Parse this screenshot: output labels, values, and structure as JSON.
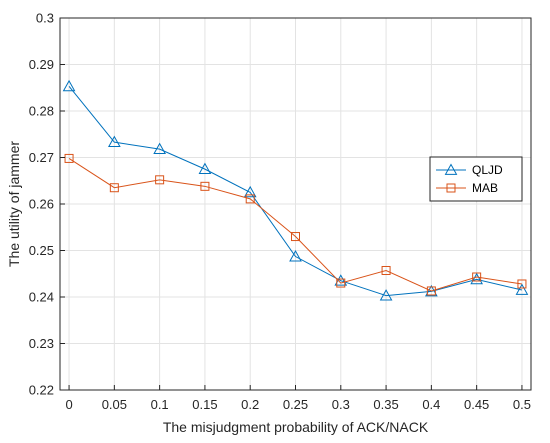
{
  "chart_data": {
    "type": "line",
    "title": "",
    "xlabel": "The misjudgment probability of ACK/NACK",
    "ylabel": "The utility of jammer",
    "x": [
      0,
      0.05,
      0.1,
      0.15,
      0.2,
      0.25,
      0.3,
      0.35,
      0.4,
      0.45,
      0.5
    ],
    "x_tick_labels": [
      "0",
      "0.05",
      "0.1",
      "0.15",
      "0.2",
      "0.25",
      "0.3",
      "0.35",
      "0.4",
      "0.45",
      "0.5"
    ],
    "xlim": [
      -0.01,
      0.51
    ],
    "ylim": [
      0.22,
      0.3
    ],
    "y_ticks": [
      0.22,
      0.23,
      0.24,
      0.25,
      0.26,
      0.27,
      0.28,
      0.29,
      0.3
    ],
    "y_tick_labels": [
      "0.22",
      "0.23",
      "0.24",
      "0.25",
      "0.26",
      "0.27",
      "0.28",
      "0.29",
      "0.3"
    ],
    "grid": true,
    "legend_position": "right",
    "series": [
      {
        "name": "QLJD",
        "marker": "triangle",
        "color": "#0072BD",
        "values": [
          0.2853,
          0.2733,
          0.2718,
          0.2675,
          0.2625,
          0.2487,
          0.2435,
          0.2403,
          0.2412,
          0.2438,
          0.2415
        ]
      },
      {
        "name": "MAB",
        "marker": "square",
        "color": "#D95319",
        "values": [
          0.2698,
          0.2635,
          0.2652,
          0.2638,
          0.2611,
          0.253,
          0.243,
          0.2457,
          0.2413,
          0.2443,
          0.2428
        ]
      }
    ]
  }
}
